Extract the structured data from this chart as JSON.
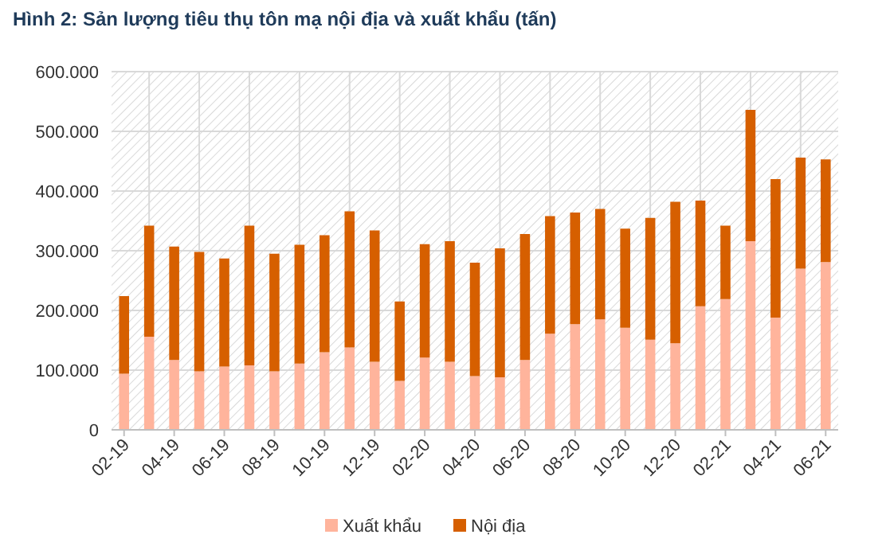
{
  "chart_data": {
    "type": "bar",
    "title": "Hình 2: Sản lượng tiêu thụ tôn mạ nội địa và xuất khẩu (tấn)",
    "stacked": true,
    "categories": [
      "02-19",
      null,
      "04-19",
      null,
      "06-19",
      null,
      "08-19",
      null,
      "10-19",
      null,
      "12-19",
      null,
      "02-20",
      null,
      "04-20",
      null,
      "06-20",
      null,
      "08-20",
      null,
      "10-20",
      null,
      "12-20",
      null,
      "02-21",
      null,
      "04-21",
      null,
      "06-21"
    ],
    "series": [
      {
        "name": "Xuất khẩu",
        "color": "#ffb49c",
        "values": [
          94000,
          156000,
          117000,
          98000,
          106000,
          108000,
          98000,
          111000,
          130000,
          138000,
          114000,
          82000,
          121000,
          114000,
          90000,
          88000,
          117000,
          161000,
          177000,
          185000,
          171000,
          151000,
          145000,
          207000,
          219000,
          316000,
          188000,
          270000,
          281000
        ]
      },
      {
        "name": "Nội địa",
        "color": "#d65f00",
        "values": [
          130000,
          186000,
          190000,
          200000,
          181000,
          234000,
          197000,
          199000,
          196000,
          228000,
          220000,
          133000,
          190000,
          202000,
          190000,
          216000,
          211000,
          197000,
          187000,
          185000,
          166000,
          204000,
          237000,
          177000,
          123000,
          220000,
          232000,
          186000,
          172000
        ]
      }
    ],
    "ylim": [
      0,
      600000
    ],
    "yticks": [
      {
        "value": 0,
        "label": "0"
      },
      {
        "value": 100000,
        "label": "100.000"
      },
      {
        "value": 200000,
        "label": "200.000"
      },
      {
        "value": 300000,
        "label": "300.000"
      },
      {
        "value": 400000,
        "label": "400.000"
      },
      {
        "value": 500000,
        "label": "500.000"
      },
      {
        "value": 600000,
        "label": "600.000"
      }
    ],
    "grid": true,
    "legend": "bottom"
  }
}
